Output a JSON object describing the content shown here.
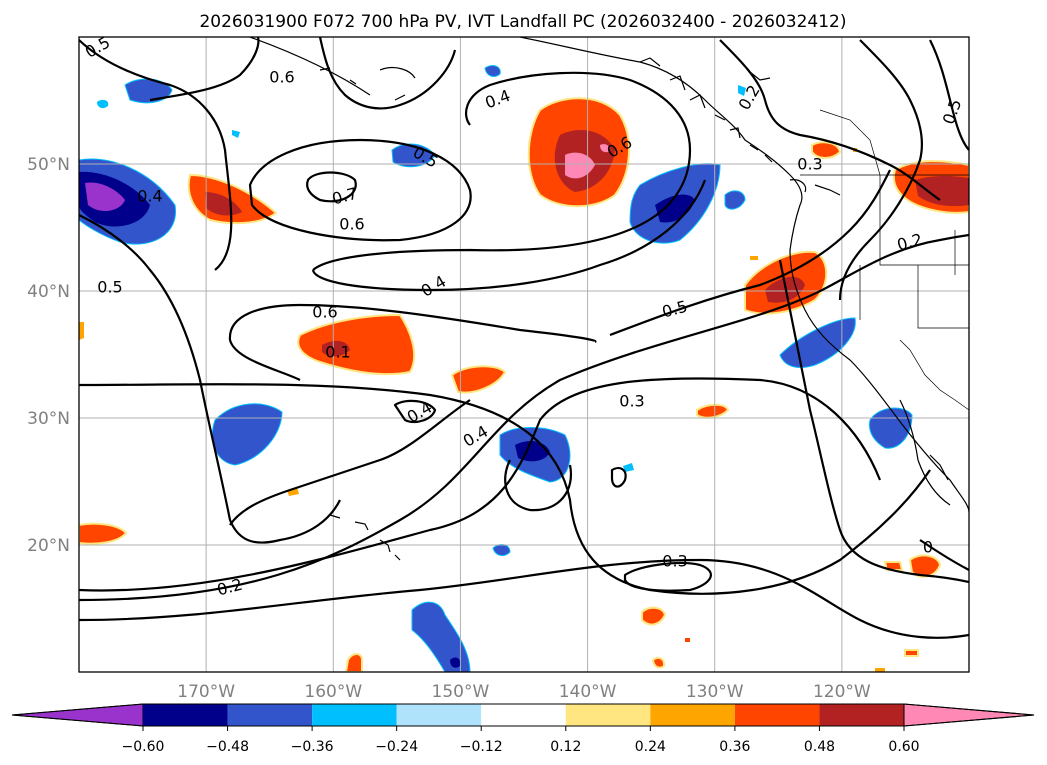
{
  "title": "2026031900 F072 700 hPa PV, IVT Landfall PC (2026032400 - 2026032412)",
  "map": {
    "lon_range": [
      -180,
      -110
    ],
    "lat_range": [
      10,
      60
    ],
    "lat_labels": [
      "50°N",
      "40°N",
      "30°N",
      "20°N"
    ],
    "lat_values": [
      50,
      40,
      30,
      20
    ],
    "lon_labels": [
      "170°W",
      "160°W",
      "150°W",
      "140°W",
      "130°W",
      "120°W"
    ],
    "lon_values": [
      -170,
      -160,
      -150,
      -140,
      -130,
      -120
    ]
  },
  "colorbar": {
    "ticks": [
      "−0.60",
      "−0.48",
      "−0.36",
      "−0.24",
      "−0.12",
      "0.12",
      "0.24",
      "0.36",
      "0.48",
      "0.60"
    ],
    "levels": [
      -0.6,
      -0.48,
      -0.36,
      -0.24,
      -0.12,
      0.12,
      0.24,
      0.36,
      0.48,
      0.6
    ],
    "colors": [
      "#9933cc",
      "#00008b",
      "#3355cc",
      "#00bfff",
      "#aee3fb",
      "#ffffff",
      "#ffe680",
      "#ffa500",
      "#ff4500",
      "#b22222",
      "#ff88b4"
    ],
    "extend": "both"
  },
  "contour_labels": [
    {
      "text": "0.5"
    },
    {
      "text": "0.6"
    },
    {
      "text": "0.4"
    },
    {
      "text": "0.5"
    },
    {
      "text": "0.7"
    },
    {
      "text": "0.6"
    },
    {
      "text": "0.4"
    },
    {
      "text": "0.5"
    },
    {
      "text": "0.4"
    },
    {
      "text": "0.6"
    },
    {
      "text": "0.1"
    },
    {
      "text": "0.6"
    },
    {
      "text": "0.4"
    },
    {
      "text": "0.3"
    },
    {
      "text": "0.5"
    },
    {
      "text": "0.6"
    },
    {
      "text": "0.2"
    },
    {
      "text": "0.3"
    },
    {
      "text": "0.4"
    },
    {
      "text": "0.5"
    },
    {
      "text": "0.2"
    },
    {
      "text": "0.3"
    },
    {
      "text": "0.2"
    },
    {
      "text": "0"
    }
  ]
}
